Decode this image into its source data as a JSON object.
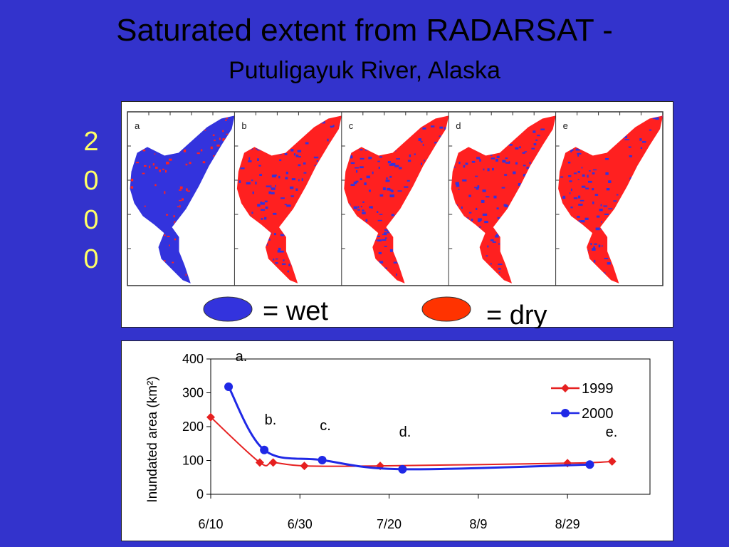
{
  "title_line1": "Saturated extent from RADARSAT -",
  "title_line2": "Putuligayuk River, Alaska",
  "year_digits": [
    "2",
    "0",
    "0",
    "0"
  ],
  "maps": {
    "panel_labels": [
      "a",
      "b",
      "c",
      "d",
      "e"
    ],
    "wet_color": "#3333dd",
    "dry_color": "#ff2020",
    "legend": {
      "wet_label": "= wet",
      "dry_label": "= dry",
      "wet_swatch": "#3333dd",
      "dry_swatch": "#ff3300"
    }
  },
  "chart_data": {
    "type": "line",
    "ylabel": "Inundated area (km²)",
    "ylim": [
      0,
      400
    ],
    "yticks": [
      "0",
      "100",
      "200",
      "300",
      "400"
    ],
    "xticks": [
      "6/10",
      "6/30",
      "7/20",
      "8/9",
      "8/29"
    ],
    "series": [
      {
        "name": "1999",
        "color": "#e62020",
        "marker": "diamond",
        "points": [
          [
            "6/10",
            228
          ],
          [
            "6/21",
            94
          ],
          [
            "6/24",
            94
          ],
          [
            "7/1",
            84
          ],
          [
            "7/18",
            84
          ],
          [
            "8/29",
            92
          ],
          [
            "9/8",
            97
          ]
        ]
      },
      {
        "name": "2000",
        "color": "#1f28e6",
        "marker": "circle",
        "points": [
          [
            "6/14",
            318
          ],
          [
            "6/22",
            131
          ],
          [
            "7/5",
            101
          ],
          [
            "7/23",
            74
          ],
          [
            "9/3",
            88
          ]
        ]
      }
    ],
    "annotations": [
      "a.",
      "b.",
      "c.",
      "d.",
      "e."
    ]
  }
}
